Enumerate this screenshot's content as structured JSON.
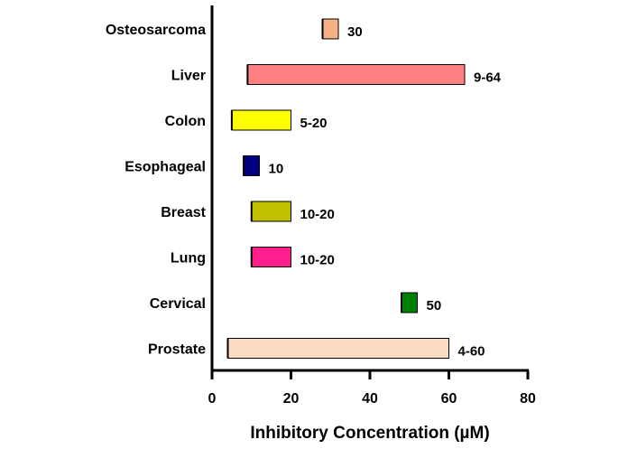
{
  "chart_data": {
    "type": "bar",
    "orientation": "horizontal",
    "categories": [
      "Osteosarcoma",
      "Liver",
      "Colon",
      "Esophageal",
      "Breast",
      "Lung",
      "Cervical",
      "Prostate"
    ],
    "ranges": [
      {
        "category": "Osteosarcoma",
        "start": 28,
        "end": 32,
        "label": "30",
        "color": "#f4b183"
      },
      {
        "category": "Liver",
        "start": 9,
        "end": 64,
        "label": "9-64",
        "color": "#ff8080"
      },
      {
        "category": "Colon",
        "start": 5,
        "end": 20,
        "label": "5-20",
        "color": "#ffff00"
      },
      {
        "category": "Esophageal",
        "start": 8,
        "end": 12,
        "label": "10",
        "color": "#000080"
      },
      {
        "category": "Breast",
        "start": 10,
        "end": 20,
        "label": "10-20",
        "color": "#c0c000"
      },
      {
        "category": "Lung",
        "start": 10,
        "end": 20,
        "label": "10-20",
        "color": "#ff1e8c"
      },
      {
        "category": "Cervical",
        "start": 48,
        "end": 52,
        "label": "50",
        "color": "#008000"
      },
      {
        "category": "Prostate",
        "start": 4,
        "end": 60,
        "label": "4-60",
        "color": "#fcdcc0"
      }
    ],
    "xlabel": "Inhibitory Concentration (µM)",
    "ylabel": "",
    "xlim": [
      0,
      80
    ],
    "xticks": [
      "0",
      "20",
      "40",
      "60",
      "80"
    ],
    "grid": false,
    "legend": "none"
  }
}
